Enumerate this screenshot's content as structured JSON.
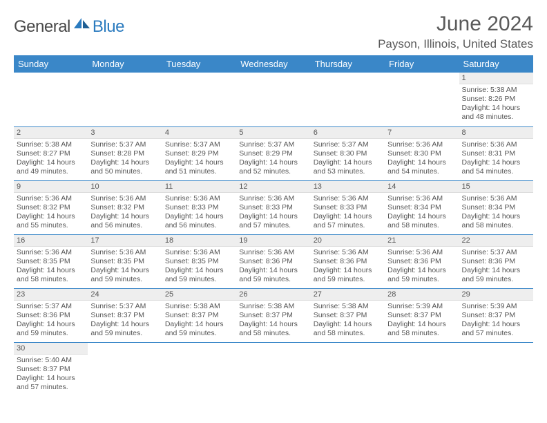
{
  "logo": {
    "text1": "General",
    "text2": "Blue"
  },
  "title": "June 2024",
  "location": "Payson, Illinois, United States",
  "colors": {
    "header_bg": "#3a87c8",
    "header_fg": "#ffffff",
    "daynum_bg": "#eeeeee",
    "text": "#555555",
    "rule": "#3a87c8",
    "logo_dark": "#4a4a4a",
    "logo_blue": "#2b7bbf"
  },
  "day_labels": [
    "Sunday",
    "Monday",
    "Tuesday",
    "Wednesday",
    "Thursday",
    "Friday",
    "Saturday"
  ],
  "weeks": [
    [
      null,
      null,
      null,
      null,
      null,
      null,
      {
        "n": "1",
        "sr": "Sunrise: 5:38 AM",
        "ss": "Sunset: 8:26 PM",
        "d1": "Daylight: 14 hours",
        "d2": "and 48 minutes."
      }
    ],
    [
      {
        "n": "2",
        "sr": "Sunrise: 5:38 AM",
        "ss": "Sunset: 8:27 PM",
        "d1": "Daylight: 14 hours",
        "d2": "and 49 minutes."
      },
      {
        "n": "3",
        "sr": "Sunrise: 5:37 AM",
        "ss": "Sunset: 8:28 PM",
        "d1": "Daylight: 14 hours",
        "d2": "and 50 minutes."
      },
      {
        "n": "4",
        "sr": "Sunrise: 5:37 AM",
        "ss": "Sunset: 8:29 PM",
        "d1": "Daylight: 14 hours",
        "d2": "and 51 minutes."
      },
      {
        "n": "5",
        "sr": "Sunrise: 5:37 AM",
        "ss": "Sunset: 8:29 PM",
        "d1": "Daylight: 14 hours",
        "d2": "and 52 minutes."
      },
      {
        "n": "6",
        "sr": "Sunrise: 5:37 AM",
        "ss": "Sunset: 8:30 PM",
        "d1": "Daylight: 14 hours",
        "d2": "and 53 minutes."
      },
      {
        "n": "7",
        "sr": "Sunrise: 5:36 AM",
        "ss": "Sunset: 8:30 PM",
        "d1": "Daylight: 14 hours",
        "d2": "and 54 minutes."
      },
      {
        "n": "8",
        "sr": "Sunrise: 5:36 AM",
        "ss": "Sunset: 8:31 PM",
        "d1": "Daylight: 14 hours",
        "d2": "and 54 minutes."
      }
    ],
    [
      {
        "n": "9",
        "sr": "Sunrise: 5:36 AM",
        "ss": "Sunset: 8:32 PM",
        "d1": "Daylight: 14 hours",
        "d2": "and 55 minutes."
      },
      {
        "n": "10",
        "sr": "Sunrise: 5:36 AM",
        "ss": "Sunset: 8:32 PM",
        "d1": "Daylight: 14 hours",
        "d2": "and 56 minutes."
      },
      {
        "n": "11",
        "sr": "Sunrise: 5:36 AM",
        "ss": "Sunset: 8:33 PM",
        "d1": "Daylight: 14 hours",
        "d2": "and 56 minutes."
      },
      {
        "n": "12",
        "sr": "Sunrise: 5:36 AM",
        "ss": "Sunset: 8:33 PM",
        "d1": "Daylight: 14 hours",
        "d2": "and 57 minutes."
      },
      {
        "n": "13",
        "sr": "Sunrise: 5:36 AM",
        "ss": "Sunset: 8:33 PM",
        "d1": "Daylight: 14 hours",
        "d2": "and 57 minutes."
      },
      {
        "n": "14",
        "sr": "Sunrise: 5:36 AM",
        "ss": "Sunset: 8:34 PM",
        "d1": "Daylight: 14 hours",
        "d2": "and 58 minutes."
      },
      {
        "n": "15",
        "sr": "Sunrise: 5:36 AM",
        "ss": "Sunset: 8:34 PM",
        "d1": "Daylight: 14 hours",
        "d2": "and 58 minutes."
      }
    ],
    [
      {
        "n": "16",
        "sr": "Sunrise: 5:36 AM",
        "ss": "Sunset: 8:35 PM",
        "d1": "Daylight: 14 hours",
        "d2": "and 58 minutes."
      },
      {
        "n": "17",
        "sr": "Sunrise: 5:36 AM",
        "ss": "Sunset: 8:35 PM",
        "d1": "Daylight: 14 hours",
        "d2": "and 59 minutes."
      },
      {
        "n": "18",
        "sr": "Sunrise: 5:36 AM",
        "ss": "Sunset: 8:35 PM",
        "d1": "Daylight: 14 hours",
        "d2": "and 59 minutes."
      },
      {
        "n": "19",
        "sr": "Sunrise: 5:36 AM",
        "ss": "Sunset: 8:36 PM",
        "d1": "Daylight: 14 hours",
        "d2": "and 59 minutes."
      },
      {
        "n": "20",
        "sr": "Sunrise: 5:36 AM",
        "ss": "Sunset: 8:36 PM",
        "d1": "Daylight: 14 hours",
        "d2": "and 59 minutes."
      },
      {
        "n": "21",
        "sr": "Sunrise: 5:36 AM",
        "ss": "Sunset: 8:36 PM",
        "d1": "Daylight: 14 hours",
        "d2": "and 59 minutes."
      },
      {
        "n": "22",
        "sr": "Sunrise: 5:37 AM",
        "ss": "Sunset: 8:36 PM",
        "d1": "Daylight: 14 hours",
        "d2": "and 59 minutes."
      }
    ],
    [
      {
        "n": "23",
        "sr": "Sunrise: 5:37 AM",
        "ss": "Sunset: 8:36 PM",
        "d1": "Daylight: 14 hours",
        "d2": "and 59 minutes."
      },
      {
        "n": "24",
        "sr": "Sunrise: 5:37 AM",
        "ss": "Sunset: 8:37 PM",
        "d1": "Daylight: 14 hours",
        "d2": "and 59 minutes."
      },
      {
        "n": "25",
        "sr": "Sunrise: 5:38 AM",
        "ss": "Sunset: 8:37 PM",
        "d1": "Daylight: 14 hours",
        "d2": "and 59 minutes."
      },
      {
        "n": "26",
        "sr": "Sunrise: 5:38 AM",
        "ss": "Sunset: 8:37 PM",
        "d1": "Daylight: 14 hours",
        "d2": "and 58 minutes."
      },
      {
        "n": "27",
        "sr": "Sunrise: 5:38 AM",
        "ss": "Sunset: 8:37 PM",
        "d1": "Daylight: 14 hours",
        "d2": "and 58 minutes."
      },
      {
        "n": "28",
        "sr": "Sunrise: 5:39 AM",
        "ss": "Sunset: 8:37 PM",
        "d1": "Daylight: 14 hours",
        "d2": "and 58 minutes."
      },
      {
        "n": "29",
        "sr": "Sunrise: 5:39 AM",
        "ss": "Sunset: 8:37 PM",
        "d1": "Daylight: 14 hours",
        "d2": "and 57 minutes."
      }
    ],
    [
      {
        "n": "30",
        "sr": "Sunrise: 5:40 AM",
        "ss": "Sunset: 8:37 PM",
        "d1": "Daylight: 14 hours",
        "d2": "and 57 minutes."
      },
      null,
      null,
      null,
      null,
      null,
      null
    ]
  ]
}
